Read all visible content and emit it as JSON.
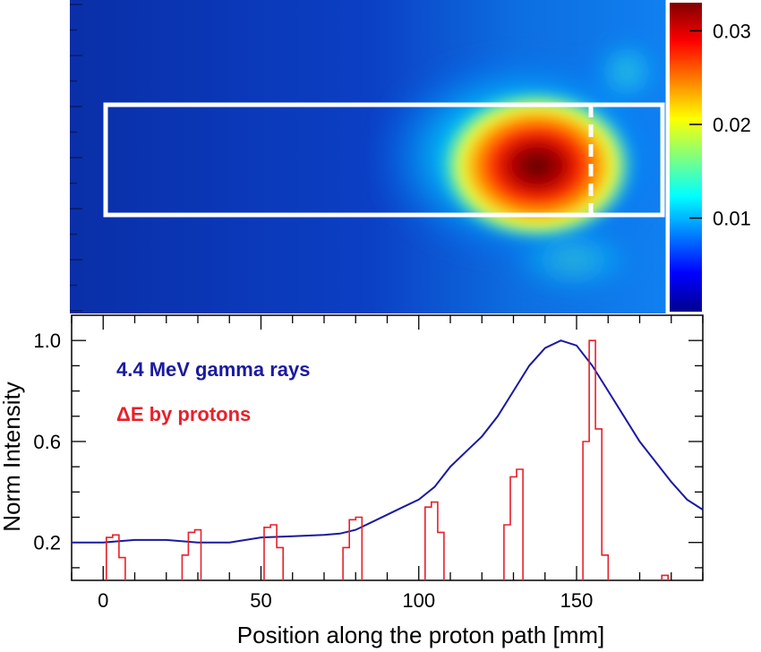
{
  "chart_data": [
    {
      "type": "heatmap",
      "description_colorbar": "",
      "colorbar": {
        "ticks": [
          0.01,
          0.02,
          0.03
        ],
        "tick_labels": [
          "0.01",
          "0.02",
          "0.03"
        ],
        "range": [
          0,
          0.033
        ],
        "colormap": "jet"
      },
      "hotspot_x_mm": 140,
      "region_box_x_mm": [
        0,
        180
      ],
      "dashed_marker_x_mm": 157
    },
    {
      "type": "line",
      "xlabel": "Position along the proton path  [mm]",
      "ylabel": "Norm Intensity",
      "xlim": [
        -10,
        190
      ],
      "ylim": [
        0.05,
        1.1
      ],
      "x_ticks": [
        0,
        50,
        100,
        150
      ],
      "x_tick_labels": [
        "0",
        "50",
        "100",
        "150"
      ],
      "y_ticks": [
        0.2,
        0.6,
        1.0
      ],
      "y_tick_labels": [
        "0.2",
        "0.6",
        "1.0"
      ],
      "series": [
        {
          "name": "4.4 MeV gamma rays",
          "color": "#1a1aa0",
          "x": [
            -10,
            0,
            10,
            20,
            30,
            40,
            50,
            60,
            70,
            75,
            80,
            85,
            90,
            95,
            100,
            105,
            110,
            115,
            120,
            125,
            130,
            135,
            140,
            145,
            150,
            155,
            160,
            165,
            170,
            175,
            180,
            185,
            190
          ],
          "values": [
            0.2,
            0.2,
            0.21,
            0.21,
            0.2,
            0.2,
            0.22,
            0.225,
            0.23,
            0.235,
            0.25,
            0.28,
            0.31,
            0.34,
            0.37,
            0.42,
            0.5,
            0.56,
            0.62,
            0.7,
            0.8,
            0.9,
            0.97,
            1.0,
            0.98,
            0.9,
            0.8,
            0.7,
            0.6,
            0.52,
            0.44,
            0.37,
            0.33
          ]
        },
        {
          "name": "ΔE by protons",
          "color": "#e8202a",
          "style": "histogram",
          "bins": [
            {
              "x0": 1,
              "x1": 3,
              "y": 0.22
            },
            {
              "x0": 3,
              "x1": 5,
              "y": 0.23
            },
            {
              "x0": 5,
              "x1": 7,
              "y": 0.14
            },
            {
              "x0": 25,
              "x1": 27,
              "y": 0.15
            },
            {
              "x0": 27,
              "x1": 29,
              "y": 0.24
            },
            {
              "x0": 29,
              "x1": 31,
              "y": 0.25
            },
            {
              "x0": 51,
              "x1": 53,
              "y": 0.26
            },
            {
              "x0": 53,
              "x1": 55,
              "y": 0.27
            },
            {
              "x0": 55,
              "x1": 57,
              "y": 0.18
            },
            {
              "x0": 76,
              "x1": 78,
              "y": 0.18
            },
            {
              "x0": 78,
              "x1": 80,
              "y": 0.29
            },
            {
              "x0": 80,
              "x1": 82,
              "y": 0.3
            },
            {
              "x0": 102,
              "x1": 104,
              "y": 0.34
            },
            {
              "x0": 104,
              "x1": 106,
              "y": 0.36
            },
            {
              "x0": 106,
              "x1": 108,
              "y": 0.24
            },
            {
              "x0": 127,
              "x1": 129,
              "y": 0.27
            },
            {
              "x0": 129,
              "x1": 131,
              "y": 0.46
            },
            {
              "x0": 131,
              "x1": 133,
              "y": 0.49
            },
            {
              "x0": 152,
              "x1": 154,
              "y": 0.6
            },
            {
              "x0": 154,
              "x1": 156,
              "y": 1.0
            },
            {
              "x0": 156,
              "x1": 158,
              "y": 0.65
            },
            {
              "x0": 158,
              "x1": 160,
              "y": 0.15
            },
            {
              "x0": 177,
              "x1": 179,
              "y": 0.07
            }
          ]
        }
      ],
      "legend_placement": "top-left"
    }
  ]
}
